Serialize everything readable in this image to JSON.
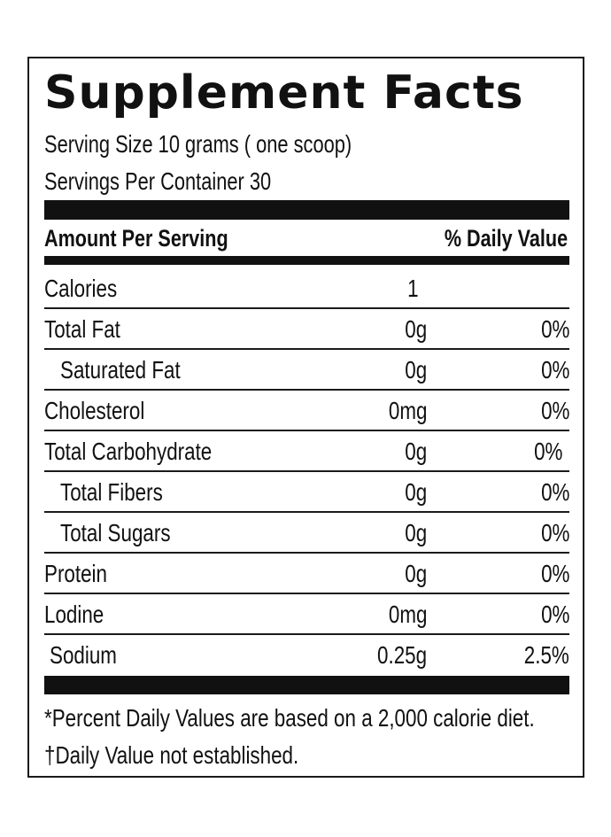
{
  "label": {
    "title": "Supplement Facts",
    "serving_size": "Serving Size 10 grams ( one scoop)",
    "servings_per_container": "Servings Per Container  30",
    "header_amount": "Amount Per Serving",
    "header_daily_value": "% Daily Value",
    "rows": [
      {
        "name": "Calories",
        "amount": "1",
        "dv": ""
      },
      {
        "name": "Total Fat",
        "amount": "0g",
        "dv": "0%"
      },
      {
        "name": "Saturated Fat",
        "amount": "0g",
        "dv": "0%"
      },
      {
        "name": "Cholesterol",
        "amount": "0mg",
        "dv": "0%"
      },
      {
        "name": "Total Carbohydrate",
        "amount": "0g",
        "dv": "0%"
      },
      {
        "name": "Total Fibers",
        "amount": "0g",
        "dv": "0%"
      },
      {
        "name": "Total Sugars",
        "amount": "0g",
        "dv": "0%"
      },
      {
        "name": "Protein",
        "amount": "0g",
        "dv": "0%"
      },
      {
        "name": "Lodine",
        "amount": "0mg",
        "dv": "0%"
      },
      {
        "name": "Sodium",
        "amount": "0.25g",
        "dv": "2.5%"
      }
    ],
    "footnote_1": "*Percent Daily Values are based on a 2,000 calorie diet.",
    "footnote_2": "†Daily Value not established."
  }
}
